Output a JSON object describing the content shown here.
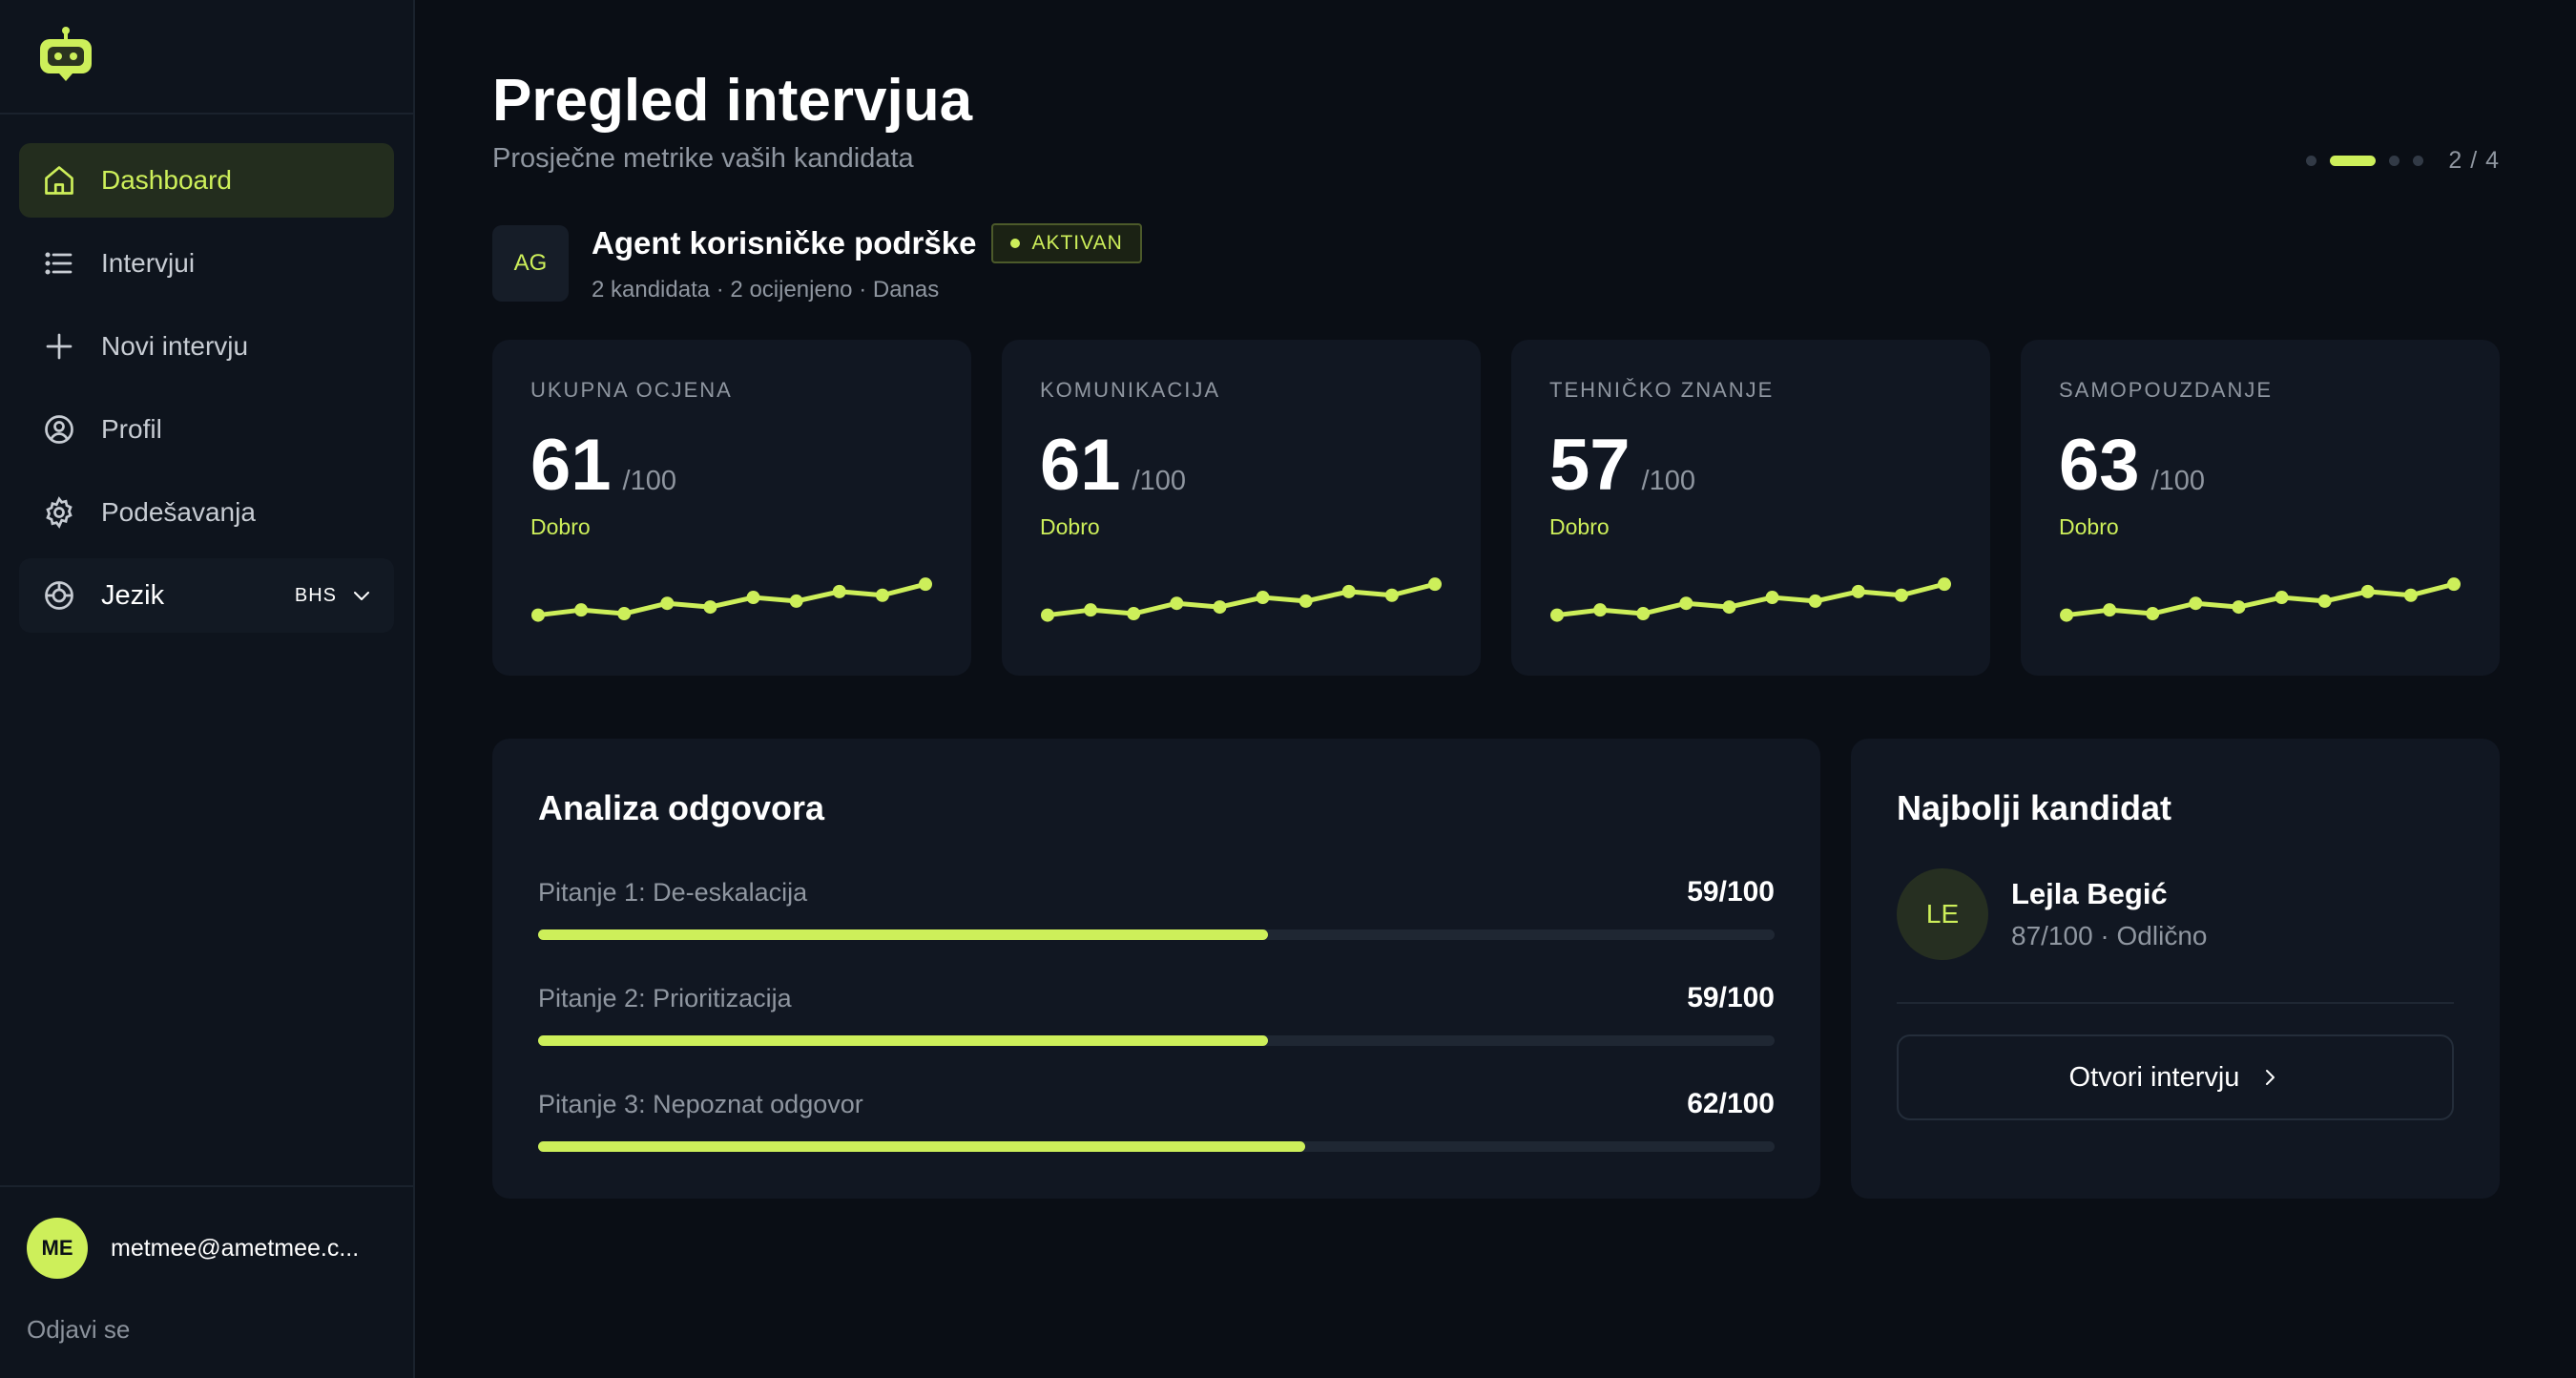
{
  "sidebar": {
    "items": [
      {
        "label": "Dashboard",
        "icon": "home-icon",
        "active": true
      },
      {
        "label": "Intervjui",
        "icon": "list-icon"
      },
      {
        "label": "Novi intervju",
        "icon": "plus-icon"
      },
      {
        "label": "Profil",
        "icon": "user-circle-icon"
      },
      {
        "label": "Podešavanja",
        "icon": "gear-icon"
      }
    ],
    "language": {
      "label": "Jezik",
      "value": "BHS",
      "icon": "globe-icon"
    },
    "user": {
      "initials": "ME",
      "email": "metmee@ametmee.c..."
    },
    "logout": "Odjavi se"
  },
  "header": {
    "title": "Pregled intervjua",
    "subtitle": "Prosječne metrike vaših kandidata",
    "pager": {
      "current": 2,
      "total": 4,
      "text": "2 / 4"
    }
  },
  "agent": {
    "initials": "AG",
    "name": "Agent korisničke podrške",
    "status": "AKTIVAN",
    "meta": "2 kandidata · 2 ocijenjeno · Danas"
  },
  "metrics": [
    {
      "label": "UKUPNA OCJENA",
      "score": "61",
      "max": "/100",
      "grade": "Dobro",
      "trend": [
        20,
        27,
        22,
        36,
        31,
        44,
        39,
        52,
        47,
        62
      ]
    },
    {
      "label": "KOMUNIKACIJA",
      "score": "61",
      "max": "/100",
      "grade": "Dobro",
      "trend": [
        20,
        27,
        22,
        36,
        31,
        44,
        39,
        52,
        47,
        62
      ]
    },
    {
      "label": "TEHNIČKO ZNANJE",
      "score": "57",
      "max": "/100",
      "grade": "Dobro",
      "trend": [
        20,
        27,
        22,
        36,
        31,
        44,
        39,
        52,
        47,
        62
      ]
    },
    {
      "label": "SAMOPOUZDANJE",
      "score": "63",
      "max": "/100",
      "grade": "Dobro",
      "trend": [
        20,
        27,
        22,
        36,
        31,
        44,
        39,
        52,
        47,
        62
      ]
    }
  ],
  "analysis": {
    "title": "Analiza odgovora",
    "questions": [
      {
        "label": "Pitanje 1: De-eskalacija",
        "score": "59/100",
        "value": 59
      },
      {
        "label": "Pitanje 2: Prioritizacija",
        "score": "59/100",
        "value": 59
      },
      {
        "label": "Pitanje 3: Nepoznat odgovor",
        "score": "62/100",
        "value": 62
      }
    ]
  },
  "best": {
    "title": "Najbolji kandidat",
    "initials": "LE",
    "name": "Lejla Begić",
    "meta": "87/100 · Odlično",
    "button": "Otvori intervju"
  },
  "colors": {
    "accent": "#cdef5a",
    "background": "#0a0e15",
    "card": "#111722"
  }
}
